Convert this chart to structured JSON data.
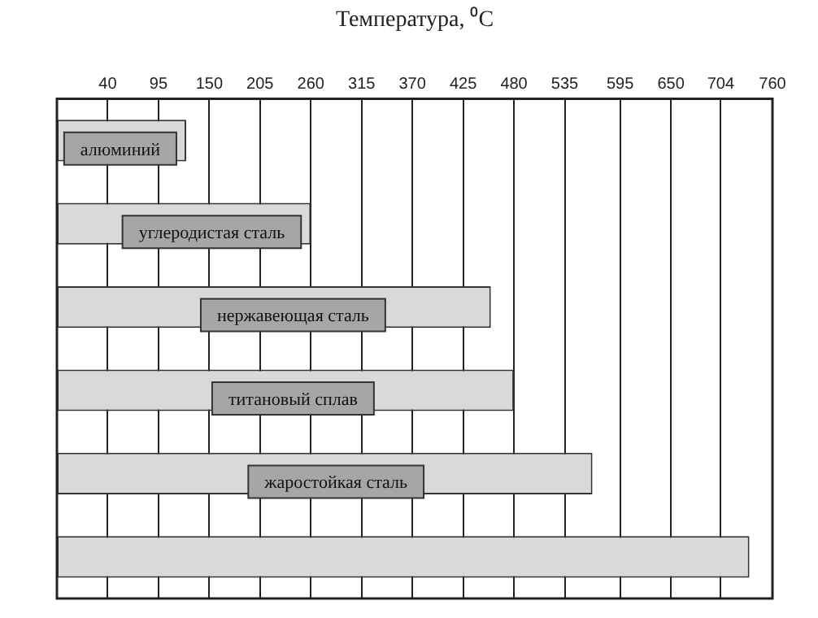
{
  "chart_data": {
    "type": "bar",
    "orientation": "horizontal",
    "xlabel": "Температура, ⁰C",
    "categories": [
      "алюминий",
      "углеродистая сталь",
      "нержавеющая сталь",
      "титановый сплав",
      "жаростойкая сталь",
      null
    ],
    "base": [
      -15,
      -15,
      -15,
      -15,
      -15,
      -15
    ],
    "values": [
      140,
      275,
      470,
      495,
      580,
      750
    ],
    "color": "#d9d9d9",
    "xlim": [
      -15,
      760
    ],
    "xticks": [
      40,
      95,
      150,
      205,
      260,
      315,
      370,
      425,
      480,
      535,
      595,
      650,
      704,
      760
    ],
    "grid": "x",
    "legend": false
  }
}
